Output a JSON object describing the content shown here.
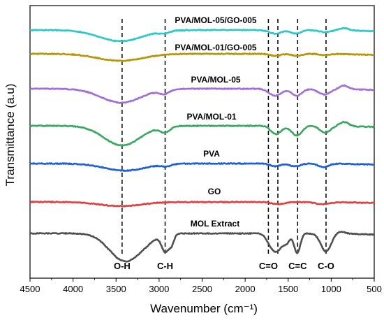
{
  "chart_data": {
    "type": "line",
    "title": "",
    "xlabel": "Wavenumber (cm⁻¹)",
    "ylabel": "Transmittance (a.u)",
    "xlim": [
      4500,
      500
    ],
    "x_reversed": true,
    "y_ticks_shown": false,
    "x_ticks": [
      4500,
      4000,
      3500,
      3000,
      2500,
      2000,
      1500,
      1000,
      500
    ],
    "x_tick_labels": [
      "4500",
      "4000",
      "3500",
      "3000",
      "2500",
      "2000",
      "1500",
      "1000",
      "500"
    ],
    "band_markers": [
      {
        "label": "O-H",
        "x": 3430
      },
      {
        "label": "C-H",
        "x": 2930
      },
      {
        "label": "C=O",
        "x": 1730
      },
      {
        "label": "",
        "x": 1620
      },
      {
        "label": "C=C",
        "x": 1390
      },
      {
        "label": "C-O",
        "x": 1060
      }
    ],
    "series": [
      {
        "name": "PVA/MOL-05/GO-005",
        "color": "#2ec8c8",
        "baseline": 0,
        "features": [
          [
            3450,
            16,
            250
          ],
          [
            2940,
            3,
            60
          ],
          [
            1650,
            5,
            70
          ],
          [
            1410,
            5,
            60
          ],
          [
            1070,
            3,
            70
          ],
          [
            850,
            -3,
            60
          ]
        ]
      },
      {
        "name": "PVA/MOL-01/GO-005",
        "color": "#b8960a",
        "baseline": 0,
        "features": [
          [
            3450,
            10,
            260
          ],
          [
            1650,
            3,
            60
          ],
          [
            1400,
            3,
            60
          ],
          [
            1070,
            2,
            60
          ]
        ]
      },
      {
        "name": "PVA/MOL-05",
        "color": "#a070d8",
        "baseline": 0,
        "features": [
          [
            3440,
            20,
            230
          ],
          [
            2940,
            6,
            60
          ],
          [
            1650,
            10,
            70
          ],
          [
            1400,
            10,
            60
          ],
          [
            1080,
            8,
            70
          ],
          [
            850,
            -5,
            50
          ]
        ]
      },
      {
        "name": "PVA/MOL-01",
        "color": "#3aa860",
        "baseline": 0,
        "features": [
          [
            3430,
            28,
            210
          ],
          [
            2930,
            8,
            60
          ],
          [
            1640,
            12,
            60
          ],
          [
            1400,
            14,
            60
          ],
          [
            1070,
            10,
            60
          ],
          [
            850,
            -6,
            50
          ]
        ]
      },
      {
        "name": "PVA",
        "color": "#1f5fd6",
        "baseline": 0,
        "features": [
          [
            3400,
            10,
            240
          ],
          [
            2920,
            3,
            60
          ],
          [
            1650,
            4,
            60
          ],
          [
            1420,
            4,
            60
          ],
          [
            1090,
            5,
            60
          ]
        ]
      },
      {
        "name": "GO",
        "color": "#e04040",
        "baseline": 0,
        "features": [
          [
            3450,
            6,
            240
          ],
          [
            1620,
            3,
            80
          ],
          [
            1100,
            3,
            90
          ]
        ]
      },
      {
        "name": "MOL Extract",
        "color": "#505050",
        "baseline": 0,
        "features": [
          [
            3420,
            36,
            170
          ],
          [
            2930,
            24,
            40
          ],
          [
            2855,
            14,
            30
          ],
          [
            3200,
            10,
            150
          ],
          [
            1730,
            6,
            40
          ],
          [
            1640,
            26,
            60
          ],
          [
            1395,
            28,
            35
          ],
          [
            1060,
            26,
            60
          ],
          [
            1520,
            12,
            40
          ],
          [
            900,
            -3,
            60
          ]
        ]
      }
    ]
  }
}
